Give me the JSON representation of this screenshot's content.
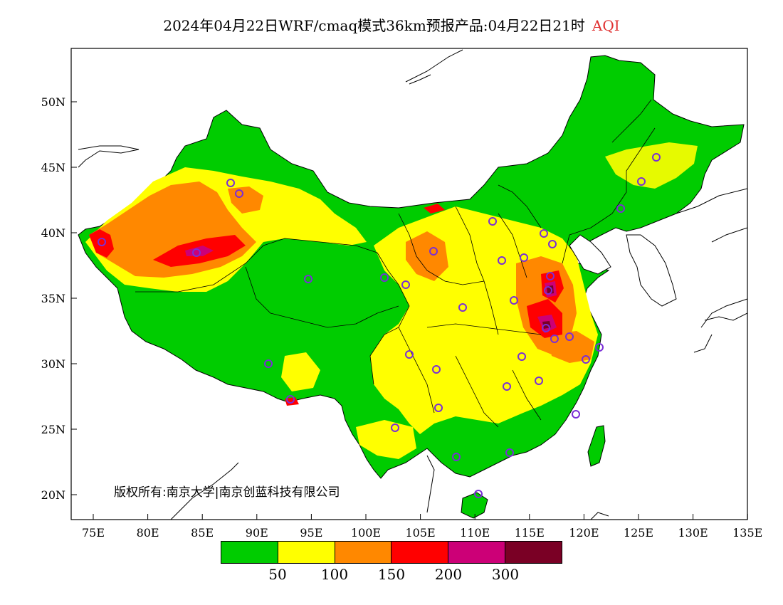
{
  "title": {
    "main": "2024年04月22日WRF/cmaq模式36km预报产品:04月22日21时",
    "variable": "AQI"
  },
  "map": {
    "lat_labels": [
      "20N",
      "25N",
      "30N",
      "35N",
      "40N",
      "45N",
      "50N"
    ],
    "lon_labels": [
      "75E",
      "80E",
      "85E",
      "90E",
      "95E",
      "100E",
      "105E",
      "110E",
      "115E",
      "120E",
      "125E",
      "130E",
      "135E"
    ],
    "copyright": "版权所有:南京大学|南京创蓝科技有限公司"
  },
  "colorbar": {
    "colors": [
      "#00cc00",
      "#ffff00",
      "#ff8800",
      "#ff0000",
      "#cc0077",
      "#7a0025"
    ],
    "labels": [
      "50",
      "100",
      "150",
      "200",
      "300"
    ]
  }
}
